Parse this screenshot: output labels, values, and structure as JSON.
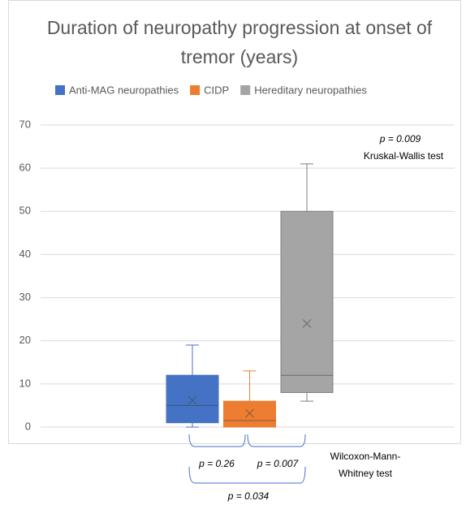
{
  "chart_data": {
    "type": "box",
    "title": "Duration of neuropathy progression at onset of tremor (years)",
    "series": [
      {
        "name": "Anti-MAG neuropathies",
        "color": "#4472c4",
        "min": 0,
        "q1": 1,
        "median": 5,
        "q3": 12,
        "max": 19,
        "mean": 6.2
      },
      {
        "name": "CIDP",
        "color": "#ed7d31",
        "min": 0,
        "q1": 0,
        "median": 1.5,
        "q3": 6,
        "max": 13,
        "mean": 3.2
      },
      {
        "name": "Hereditary neuropathies",
        "color": "#a5a5a5",
        "min": 6,
        "q1": 8,
        "median": 12,
        "q3": 50,
        "max": 61,
        "mean": 24
      }
    ],
    "ylim": [
      0,
      70
    ],
    "yticks": [
      0,
      10,
      20,
      30,
      40,
      50,
      60,
      70
    ],
    "grid": true,
    "legend": "top",
    "annotations": {
      "kw_p": "p = 0.009",
      "kw_test": "Kruskal-Wallis test",
      "wmw_test": "Wilcoxon-Mann-Whitney test",
      "p_1_2": "p = 0.26",
      "p_2_3": "p = 0.007",
      "p_1_3": "p = 0.034"
    }
  }
}
